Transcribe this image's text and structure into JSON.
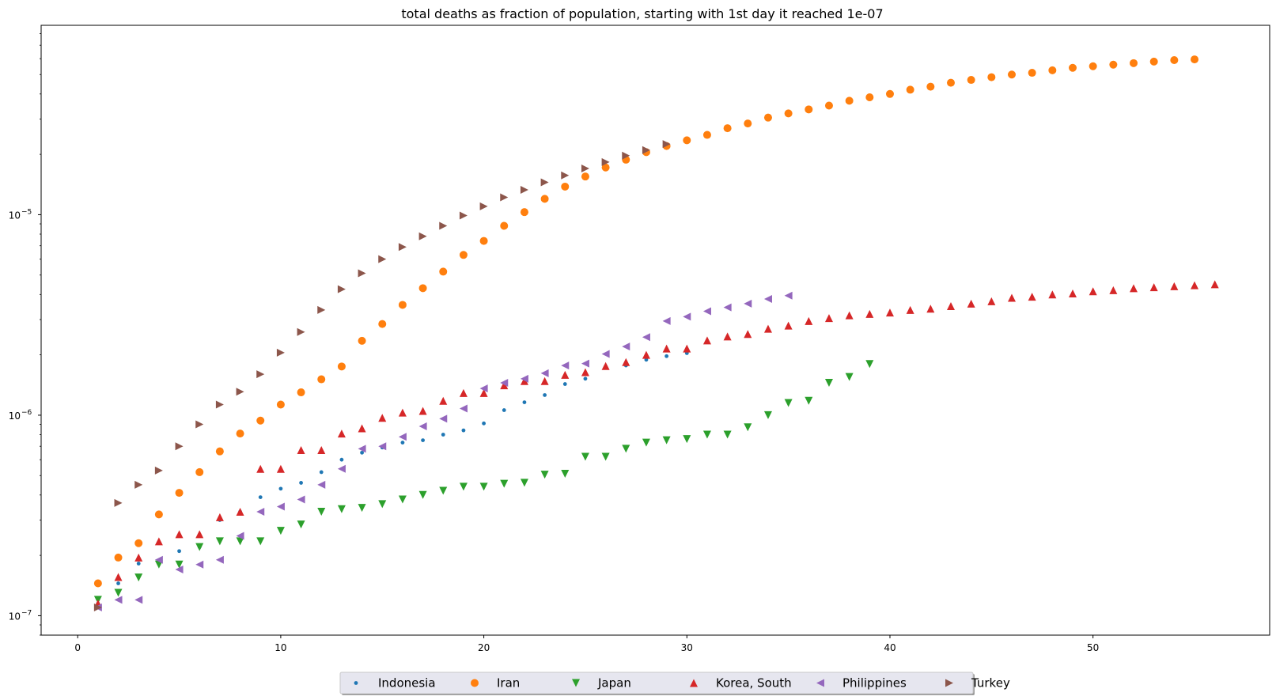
{
  "chart_data": {
    "type": "scatter",
    "title": "total deaths as fraction of population, starting with 1st day it reached 1e-07",
    "xlabel": "",
    "ylabel": "",
    "x_scale": "linear",
    "y_scale": "log",
    "xlim": [
      -1.8,
      58.7
    ],
    "ylim": [
      8e-08,
      8.8e-05
    ],
    "xticks": [
      0,
      10,
      20,
      30,
      40,
      50
    ],
    "xtick_labels": [
      "0",
      "10",
      "20",
      "30",
      "40",
      "50"
    ],
    "yticks": [
      1e-07,
      1e-06,
      1e-05
    ],
    "ytick_labels": [
      "10",
      "10",
      "10"
    ],
    "ytick_exponents": [
      "−7",
      "−6",
      "−5"
    ],
    "grid": false,
    "legend_position": "bottom-center",
    "series": [
      {
        "name": "Indonesia",
        "marker": "point",
        "color": "#1f77b4",
        "x": [
          1,
          2,
          3,
          4,
          5,
          6,
          7,
          8,
          9,
          10,
          11,
          12,
          13,
          14,
          15,
          16,
          17,
          18,
          19,
          20,
          21,
          22,
          23,
          24,
          25,
          26,
          27,
          28,
          29,
          30
        ],
        "y": [
          1.15e-07,
          1.45e-07,
          1.82e-07,
          1.86e-07,
          2.1e-07,
          2.2e-07,
          3e-07,
          3.3e-07,
          3.9e-07,
          4.3e-07,
          4.6e-07,
          5.2e-07,
          6e-07,
          6.5e-07,
          6.9e-07,
          7.3e-07,
          7.5e-07,
          8e-07,
          8.4e-07,
          9.1e-07,
          1.06e-06,
          1.16e-06,
          1.26e-06,
          1.43e-06,
          1.52e-06,
          1.75e-06,
          1.77e-06,
          1.89e-06,
          1.97e-06,
          2.04e-06
        ]
      },
      {
        "name": "Iran",
        "marker": "circle",
        "color": "#ff7f0e",
        "x": [
          1,
          2,
          3,
          4,
          5,
          6,
          7,
          8,
          9,
          10,
          11,
          12,
          13,
          14,
          15,
          16,
          17,
          18,
          19,
          20,
          21,
          22,
          23,
          24,
          25,
          26,
          27,
          28,
          29,
          30,
          31,
          32,
          33,
          34,
          35,
          36,
          37,
          38,
          39,
          40,
          41,
          42,
          43,
          44,
          45,
          46,
          47,
          48,
          49,
          50,
          51,
          52,
          53,
          54,
          55
        ],
        "y": [
          1.45e-07,
          1.95e-07,
          2.3e-07,
          3.2e-07,
          4.1e-07,
          5.2e-07,
          6.6e-07,
          8.1e-07,
          9.4e-07,
          1.13e-06,
          1.3e-06,
          1.51e-06,
          1.75e-06,
          2.35e-06,
          2.85e-06,
          3.55e-06,
          4.3e-06,
          5.2e-06,
          6.3e-06,
          7.4e-06,
          8.8e-06,
          1.03e-05,
          1.2e-05,
          1.38e-05,
          1.55e-05,
          1.72e-05,
          1.88e-05,
          2.05e-05,
          2.2e-05,
          2.35e-05,
          2.5e-05,
          2.7e-05,
          2.85e-05,
          3.05e-05,
          3.2e-05,
          3.35e-05,
          3.5e-05,
          3.7e-05,
          3.85e-05,
          4e-05,
          4.2e-05,
          4.35e-05,
          4.55e-05,
          4.7e-05,
          4.85e-05,
          5e-05,
          5.1e-05,
          5.25e-05,
          5.4e-05,
          5.5e-05,
          5.6e-05,
          5.7e-05,
          5.8e-05,
          5.9e-05,
          5.95e-05
        ]
      },
      {
        "name": "Japan",
        "marker": "triangle-down",
        "color": "#2ca02c",
        "x": [
          1,
          2,
          3,
          4,
          5,
          6,
          7,
          8,
          9,
          10,
          11,
          12,
          13,
          14,
          15,
          16,
          17,
          18,
          19,
          20,
          21,
          22,
          23,
          24,
          25,
          26,
          27,
          28,
          29,
          30,
          31,
          32,
          33,
          34,
          35,
          36,
          37,
          38,
          39
        ],
        "y": [
          1.2e-07,
          1.3e-07,
          1.55e-07,
          1.8e-07,
          1.8e-07,
          2.2e-07,
          2.35e-07,
          2.35e-07,
          2.35e-07,
          2.65e-07,
          2.85e-07,
          3.3e-07,
          3.4e-07,
          3.45e-07,
          3.6e-07,
          3.8e-07,
          4e-07,
          4.2e-07,
          4.4e-07,
          4.4e-07,
          4.55e-07,
          4.6e-07,
          5.05e-07,
          5.1e-07,
          6.2e-07,
          6.2e-07,
          6.8e-07,
          7.3e-07,
          7.5e-07,
          7.6e-07,
          8e-07,
          8e-07,
          8.7e-07,
          1e-06,
          1.15e-06,
          1.18e-06,
          1.45e-06,
          1.55e-06,
          1.8e-06
        ]
      },
      {
        "name": "Korea, South",
        "marker": "triangle-up",
        "color": "#d62728",
        "x": [
          1,
          2,
          3,
          4,
          5,
          6,
          7,
          8,
          9,
          10,
          11,
          12,
          13,
          14,
          15,
          16,
          17,
          18,
          19,
          20,
          21,
          22,
          23,
          24,
          25,
          26,
          27,
          28,
          29,
          30,
          31,
          32,
          33,
          34,
          35,
          36,
          37,
          38,
          39,
          40,
          41,
          42,
          43,
          44,
          45,
          46,
          47,
          48,
          49,
          50,
          51,
          52,
          53,
          54,
          55,
          56
        ],
        "y": [
          1.15e-07,
          1.56e-07,
          1.95e-07,
          2.35e-07,
          2.55e-07,
          2.55e-07,
          3.1e-07,
          3.3e-07,
          5.4e-07,
          5.4e-07,
          6.7e-07,
          6.7e-07,
          8.1e-07,
          8.6e-07,
          9.7e-07,
          1.03e-06,
          1.05e-06,
          1.18e-06,
          1.29e-06,
          1.29e-06,
          1.41e-06,
          1.48e-06,
          1.48e-06,
          1.59e-06,
          1.64e-06,
          1.76e-06,
          1.84e-06,
          2e-06,
          2.15e-06,
          2.15e-06,
          2.36e-06,
          2.47e-06,
          2.54e-06,
          2.7e-06,
          2.8e-06,
          2.95e-06,
          3.05e-06,
          3.15e-06,
          3.2e-06,
          3.25e-06,
          3.35e-06,
          3.4e-06,
          3.5e-06,
          3.6e-06,
          3.7e-06,
          3.85e-06,
          3.9e-06,
          4e-06,
          4.05e-06,
          4.15e-06,
          4.2e-06,
          4.3e-06,
          4.35e-06,
          4.4e-06,
          4.45e-06,
          4.5e-06
        ]
      },
      {
        "name": "Philippines",
        "marker": "triangle-left",
        "color": "#9467bd",
        "x": [
          1,
          2,
          3,
          4,
          5,
          6,
          7,
          8,
          9,
          10,
          11,
          12,
          13,
          14,
          15,
          16,
          17,
          18,
          19,
          20,
          21,
          22,
          23,
          24,
          25,
          26,
          27,
          28,
          29,
          30,
          31,
          32,
          33,
          34,
          35
        ],
        "y": [
          1.1e-07,
          1.2e-07,
          1.2e-07,
          1.9e-07,
          1.7e-07,
          1.8e-07,
          1.9e-07,
          2.5e-07,
          3.3e-07,
          3.5e-07,
          3.8e-07,
          4.5e-07,
          5.4e-07,
          6.8e-07,
          7e-07,
          7.8e-07,
          8.8e-07,
          9.6e-07,
          1.08e-06,
          1.36e-06,
          1.45e-06,
          1.52e-06,
          1.62e-06,
          1.77e-06,
          1.81e-06,
          2.02e-06,
          2.2e-06,
          2.45e-06,
          2.95e-06,
          3.1e-06,
          3.3e-06,
          3.45e-06,
          3.6e-06,
          3.8e-06,
          3.95e-06
        ]
      },
      {
        "name": "Turkey",
        "marker": "triangle-right",
        "color": "#8c564b",
        "x": [
          1,
          2,
          3,
          4,
          5,
          6,
          7,
          8,
          9,
          10,
          11,
          12,
          13,
          14,
          15,
          16,
          17,
          18,
          19,
          20,
          21,
          22,
          23,
          24,
          25,
          26,
          27,
          28,
          29
        ],
        "y": [
          1.1e-07,
          3.65e-07,
          4.5e-07,
          5.3e-07,
          7e-07,
          9e-07,
          1.13e-06,
          1.31e-06,
          1.6e-06,
          2.05e-06,
          2.6e-06,
          3.35e-06,
          4.25e-06,
          5.1e-06,
          6e-06,
          6.9e-06,
          7.8e-06,
          8.8e-06,
          9.9e-06,
          1.1e-05,
          1.22e-05,
          1.33e-05,
          1.45e-05,
          1.57e-05,
          1.7e-05,
          1.83e-05,
          1.97e-05,
          2.1e-05,
          2.25e-05
        ]
      }
    ]
  }
}
